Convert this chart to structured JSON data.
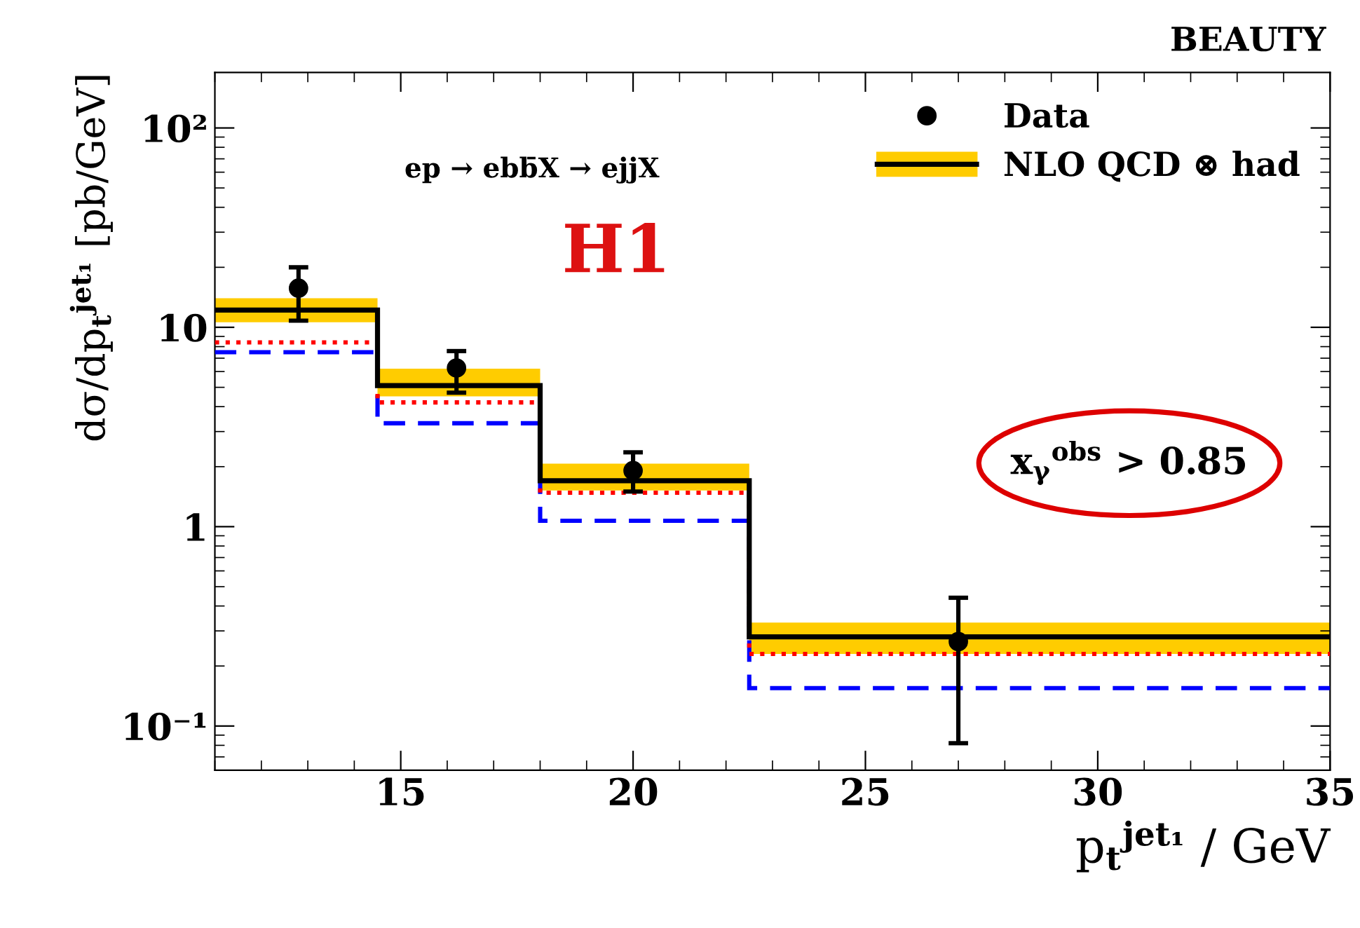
{
  "chart_data": {
    "type": "histogram",
    "title": "BEAUTY",
    "xlabel": "p$_{t}$$^{jet₁}$ / GeV",
    "ylabel": "dσ/dp$_{t}$$^{jet₁}$ [pb/GeV]",
    "bins": [
      11,
      14.5,
      18,
      22.5,
      35
    ],
    "series": [
      {
        "name": "Data",
        "type": "scatter",
        "color": "#000000",
        "marker": "circle",
        "x": [
          12.8,
          16.2,
          20,
          27
        ],
        "values": [
          15.7,
          6.25,
          1.91,
          0.265
        ],
        "errors": [
          [
            10.8,
            20
          ],
          [
            4.7,
            7.6
          ],
          [
            1.5,
            2.36
          ],
          [
            0.082,
            0.44
          ]
        ]
      },
      {
        "color": "#ffcc00",
        "base": [
          10.6,
          4.5,
          1.52,
          0.23
        ],
        "values": [
          3.4,
          1.7,
          0.55,
          0.1
        ]
      },
      {
        "color": "#0000ff",
        "line_style": "dashed",
        "values": [
          7.5,
          3.3,
          1.07,
          0.155
        ]
      },
      {
        "color": "#ff0000",
        "line_style": "dotted",
        "values": [
          8.4,
          4.2,
          1.48,
          0.23
        ]
      },
      {
        "name": "NLO QCD ⊗ had",
        "color": "#000000",
        "line_style": "solid",
        "values": [
          12.2,
          5.1,
          1.7,
          0.28
        ]
      }
    ],
    "log": "y",
    "xlim": [
      11,
      35
    ],
    "xticks": [
      15,
      20,
      25,
      30,
      35
    ],
    "ylim": [
      0.06,
      190
    ],
    "yticks": [
      {
        "value": 0.1,
        "label": "10⁻¹"
      },
      1,
      10,
      {
        "value": 100,
        "label": "10²"
      }
    ],
    "grid": false,
    "legend": "top right",
    "annotations": [
      "ep → ebb̄X → ejjX",
      "H1",
      "x$_{γ}$$^{obs}$ > 0.85"
    ]
  }
}
